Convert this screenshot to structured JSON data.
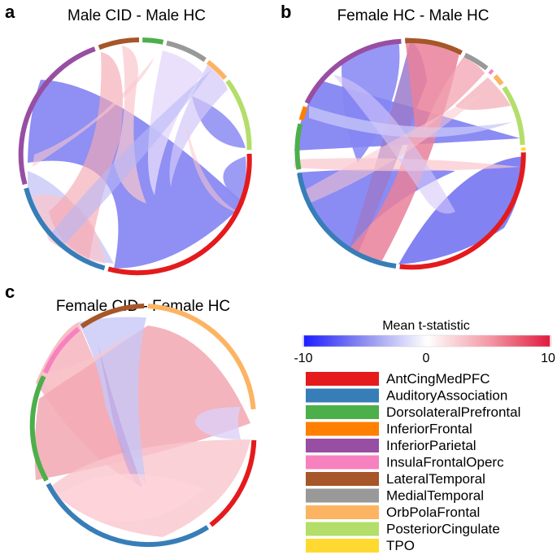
{
  "panels": [
    {
      "letter": "a",
      "title": "Male CID - Male HC"
    },
    {
      "letter": "b",
      "title": "Female HC - Male HC"
    },
    {
      "letter": "c",
      "title": "Female CID - Female HC"
    }
  ],
  "colorbar": {
    "title": "Mean t-statistic",
    "min_label": "-10",
    "mid_label": "0",
    "max_label": "10",
    "stops": [
      "#1a1aff",
      "#8f8ff0",
      "#ffffff",
      "#f39aa5",
      "#e0173c"
    ]
  },
  "legend": [
    {
      "label": "AntCingMedPFC",
      "color": "#e41a1c"
    },
    {
      "label": "AuditoryAssociation",
      "color": "#377eb8"
    },
    {
      "label": "DorsolateralPrefrontal",
      "color": "#4daf4a"
    },
    {
      "label": "InferiorFrontal",
      "color": "#ff7f00"
    },
    {
      "label": "InferiorParietal",
      "color": "#984ea3"
    },
    {
      "label": "InsulaFrontalOperc",
      "color": "#f781bf"
    },
    {
      "label": "LateralTemporal",
      "color": "#a65628"
    },
    {
      "label": "MedialTemporal",
      "color": "#999999"
    },
    {
      "label": "OrbPolaFrontal",
      "color": "#fdb462"
    },
    {
      "label": "PosteriorCingulate",
      "color": "#b3de69"
    },
    {
      "label": "TPO",
      "color": "#ffd92f"
    }
  ],
  "colors": {
    "blue_strong": "#7b7bf2",
    "blue_light": "#c8c8f8",
    "red_strong": "#ee8d9c",
    "red_light": "#f9c6cd",
    "purple": "#a087d8"
  }
}
